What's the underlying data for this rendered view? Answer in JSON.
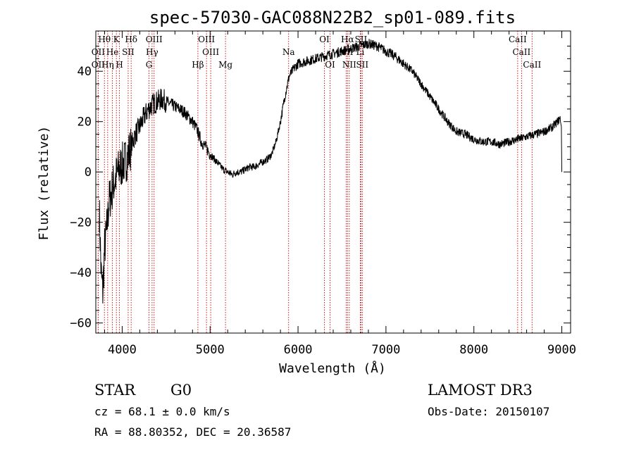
{
  "chart_data": {
    "type": "line",
    "title": "spec-57030-GAC088N22B2_sp01-089.fits",
    "xlabel": "Wavelength (Å)",
    "ylabel": "Flux (relative)",
    "xlim": [
      3700,
      9100
    ],
    "ylim": [
      -64,
      56
    ],
    "xticks": [
      4000,
      5000,
      6000,
      7000,
      8000,
      9000
    ],
    "yticks": [
      -60,
      -40,
      -20,
      0,
      20,
      40
    ],
    "line_color": "#000000",
    "marker_color": "#cc0000",
    "spectrum": {
      "x": [
        3740,
        3760,
        3780,
        3800,
        3820,
        3850,
        3900,
        3950,
        4000,
        4050,
        4100,
        4150,
        4200,
        4250,
        4300,
        4350,
        4400,
        4450,
        4500,
        4550,
        4600,
        4650,
        4700,
        4750,
        4800,
        4850,
        4900,
        4950,
        5000,
        5050,
        5100,
        5150,
        5200,
        5250,
        5300,
        5350,
        5400,
        5450,
        5500,
        5550,
        5600,
        5650,
        5700,
        5750,
        5800,
        5850,
        5900,
        5950,
        6000,
        6100,
        6200,
        6300,
        6400,
        6500,
        6600,
        6700,
        6800,
        6900,
        7000,
        7100,
        7200,
        7300,
        7400,
        7500,
        7600,
        7700,
        7800,
        7900,
        8000,
        8100,
        8200,
        8300,
        8400,
        8500,
        8600,
        8700,
        8800,
        8900,
        8950,
        9000
      ],
      "y": [
        -15,
        -40,
        -48,
        -30,
        -25,
        -12,
        -5,
        0,
        3,
        5,
        10,
        15,
        18,
        22,
        25,
        27,
        28,
        29,
        28,
        27,
        26,
        25,
        24,
        22,
        20,
        17,
        12,
        10,
        7,
        5,
        3,
        1,
        0,
        -1,
        0,
        0,
        1,
        2,
        2,
        3,
        4,
        5,
        7,
        12,
        20,
        30,
        38,
        41,
        43,
        44,
        45,
        46,
        47,
        48,
        49,
        50,
        51,
        50,
        48,
        46,
        43,
        40,
        35,
        30,
        25,
        20,
        16,
        15,
        13,
        12,
        12,
        11,
        12,
        13,
        14,
        15,
        16,
        18,
        20,
        22
      ]
    },
    "lines": [
      {
        "label": "Hθ",
        "wl": 3798,
        "tier": 0
      },
      {
        "label": "OII",
        "wl": 3727,
        "tier": 1
      },
      {
        "label": "OII",
        "wl": 3727,
        "tier": 2
      },
      {
        "label": "He",
        "wl": 3889,
        "tier": 1
      },
      {
        "label": "Hη",
        "wl": 3835,
        "tier": 2
      },
      {
        "label": "K",
        "wl": 3934,
        "tier": 0
      },
      {
        "label": "H",
        "wl": 3969,
        "tier": 2
      },
      {
        "label": "SII",
        "wl": 4068,
        "tier": 1
      },
      {
        "label": "Hδ",
        "wl": 4102,
        "tier": 0
      },
      {
        "label": "OIII",
        "wl": 4363,
        "tier": 0
      },
      {
        "label": "Hγ",
        "wl": 4340,
        "tier": 1
      },
      {
        "label": "G",
        "wl": 4305,
        "tier": 2
      },
      {
        "label": "Hβ",
        "wl": 4861,
        "tier": 2
      },
      {
        "label": "OIII",
        "wl": 4959,
        "tier": 0
      },
      {
        "label": "OIII",
        "wl": 5007,
        "tier": 1
      },
      {
        "label": "Mg",
        "wl": 5175,
        "tier": 2
      },
      {
        "label": "Na",
        "wl": 5893,
        "tier": 1
      },
      {
        "label": "OI",
        "wl": 6300,
        "tier": 0
      },
      {
        "label": "OI",
        "wl": 6364,
        "tier": 2
      },
      {
        "label": "Hα",
        "wl": 6563,
        "tier": 0
      },
      {
        "label": "NII",
        "wl": 6548,
        "tier": 1
      },
      {
        "label": "NII",
        "wl": 6583,
        "tier": 2
      },
      {
        "label": "SII",
        "wl": 6716,
        "tier": 0
      },
      {
        "label": "Li",
        "wl": 6708,
        "tier": 1
      },
      {
        "label": "SII",
        "wl": 6731,
        "tier": 2
      },
      {
        "label": "CaII",
        "wl": 8498,
        "tier": 0
      },
      {
        "label": "CaII",
        "wl": 8542,
        "tier": 1
      },
      {
        "label": "CaII",
        "wl": 8662,
        "tier": 2
      }
    ]
  },
  "info": {
    "object_class": "STAR",
    "subclass": "G0",
    "redshift": "cz =  68.1 ± 0.0 km/s",
    "coords": "RA =  88.80352, DEC =  20.36587",
    "survey": "LAMOST DR3",
    "obs_date": "Obs-Date: 20150107"
  }
}
